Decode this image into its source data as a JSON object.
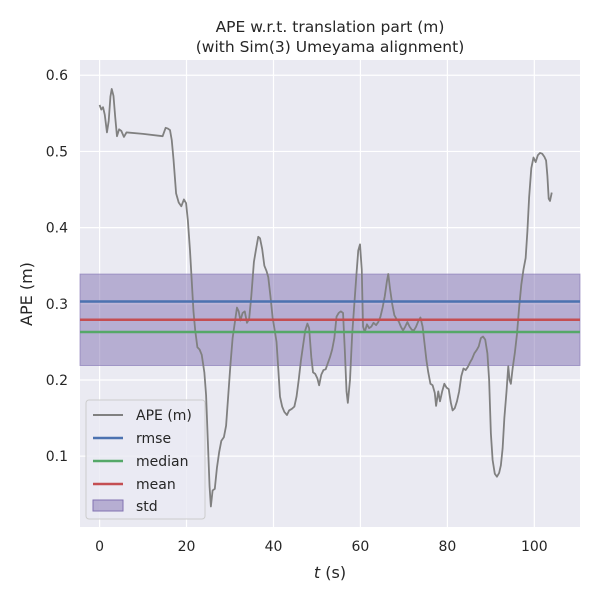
{
  "chart_data": {
    "type": "line",
    "title": "APE w.r.t. translation part (m)",
    "subtitle": "(with Sim(3) Umeyama alignment)",
    "xlabel_italic": "t",
    "xlabel_rest": " (s)",
    "ylabel": "APE (m)",
    "xlim": [
      -4.5,
      110.5
    ],
    "ylim": [
      0.007,
      0.62
    ],
    "xticks": [
      0,
      20,
      40,
      60,
      80,
      100
    ],
    "yticks": [
      0.1,
      0.2,
      0.3,
      0.4,
      0.5,
      0.6
    ],
    "grid": true,
    "legend_position": "lower-left",
    "colors": {
      "background": "#eaeaf2",
      "grid": "#ffffff",
      "ape": "#808080",
      "rmse": "#4c72b0",
      "median": "#55a868",
      "mean": "#c44e52",
      "std": "#8172b2"
    },
    "stats": {
      "rmse": 0.303,
      "median": 0.263,
      "mean": 0.279,
      "std_low": 0.219,
      "std_high": 0.339
    },
    "legend": [
      "APE (m)",
      "rmse",
      "median",
      "mean",
      "std"
    ],
    "series": [
      {
        "name": "APE (m)",
        "points": [
          [
            0,
            0.561
          ],
          [
            0.4,
            0.555
          ],
          [
            0.8,
            0.558
          ],
          [
            1.2,
            0.548
          ],
          [
            1.7,
            0.525
          ],
          [
            2.1,
            0.54
          ],
          [
            2.5,
            0.572
          ],
          [
            2.8,
            0.582
          ],
          [
            3.2,
            0.573
          ],
          [
            3.6,
            0.545
          ],
          [
            4.0,
            0.52
          ],
          [
            4.5,
            0.529
          ],
          [
            5.0,
            0.527
          ],
          [
            5.6,
            0.519
          ],
          [
            6.2,
            0.525
          ],
          [
            10,
            0.523
          ],
          [
            14.5,
            0.52
          ],
          [
            15.2,
            0.531
          ],
          [
            15.7,
            0.53
          ],
          [
            16.2,
            0.528
          ],
          [
            16.6,
            0.515
          ],
          [
            17.0,
            0.49
          ],
          [
            17.6,
            0.445
          ],
          [
            18.2,
            0.433
          ],
          [
            18.8,
            0.428
          ],
          [
            19.4,
            0.437
          ],
          [
            19.9,
            0.432
          ],
          [
            20.3,
            0.41
          ],
          [
            20.8,
            0.37
          ],
          [
            21.2,
            0.33
          ],
          [
            21.6,
            0.29
          ],
          [
            22.0,
            0.265
          ],
          [
            22.5,
            0.243
          ],
          [
            23.0,
            0.24
          ],
          [
            23.5,
            0.233
          ],
          [
            24.1,
            0.21
          ],
          [
            24.5,
            0.18
          ],
          [
            24.9,
            0.12
          ],
          [
            25.3,
            0.06
          ],
          [
            25.6,
            0.034
          ],
          [
            26.0,
            0.055
          ],
          [
            26.5,
            0.057
          ],
          [
            27.0,
            0.085
          ],
          [
            27.5,
            0.105
          ],
          [
            28.0,
            0.12
          ],
          [
            28.6,
            0.125
          ],
          [
            29.1,
            0.14
          ],
          [
            29.6,
            0.18
          ],
          [
            30.1,
            0.22
          ],
          [
            30.6,
            0.255
          ],
          [
            31.1,
            0.275
          ],
          [
            31.6,
            0.295
          ],
          [
            32.0,
            0.29
          ],
          [
            32.4,
            0.278
          ],
          [
            32.9,
            0.288
          ],
          [
            33.4,
            0.29
          ],
          [
            33.9,
            0.275
          ],
          [
            34.4,
            0.28
          ],
          [
            34.9,
            0.31
          ],
          [
            35.5,
            0.355
          ],
          [
            36.0,
            0.372
          ],
          [
            36.5,
            0.388
          ],
          [
            36.9,
            0.386
          ],
          [
            37.4,
            0.372
          ],
          [
            37.9,
            0.35
          ],
          [
            38.4,
            0.343
          ],
          [
            38.8,
            0.335
          ],
          [
            39.3,
            0.31
          ],
          [
            39.8,
            0.282
          ],
          [
            40.2,
            0.268
          ],
          [
            40.7,
            0.25
          ],
          [
            41.1,
            0.215
          ],
          [
            41.5,
            0.178
          ],
          [
            42.0,
            0.165
          ],
          [
            42.5,
            0.158
          ],
          [
            43.1,
            0.154
          ],
          [
            43.6,
            0.16
          ],
          [
            44.2,
            0.162
          ],
          [
            44.8,
            0.165
          ],
          [
            45.3,
            0.178
          ],
          [
            45.8,
            0.2
          ],
          [
            46.3,
            0.225
          ],
          [
            46.8,
            0.245
          ],
          [
            47.3,
            0.265
          ],
          [
            47.8,
            0.274
          ],
          [
            48.2,
            0.268
          ],
          [
            48.7,
            0.23
          ],
          [
            49.1,
            0.21
          ],
          [
            49.6,
            0.208
          ],
          [
            50.1,
            0.202
          ],
          [
            50.5,
            0.193
          ],
          [
            51.0,
            0.207
          ],
          [
            51.5,
            0.213
          ],
          [
            52.0,
            0.214
          ],
          [
            52.5,
            0.222
          ],
          [
            53.0,
            0.23
          ],
          [
            53.5,
            0.24
          ],
          [
            54.0,
            0.255
          ],
          [
            54.5,
            0.283
          ],
          [
            55.0,
            0.288
          ],
          [
            55.5,
            0.29
          ],
          [
            56.0,
            0.288
          ],
          [
            56.4,
            0.24
          ],
          [
            56.8,
            0.185
          ],
          [
            57.1,
            0.17
          ],
          [
            57.6,
            0.2
          ],
          [
            58.1,
            0.26
          ],
          [
            58.6,
            0.3
          ],
          [
            59.1,
            0.34
          ],
          [
            59.5,
            0.37
          ],
          [
            59.9,
            0.378
          ],
          [
            60.3,
            0.345
          ],
          [
            60.6,
            0.27
          ],
          [
            61.0,
            0.263
          ],
          [
            61.5,
            0.273
          ],
          [
            62.0,
            0.268
          ],
          [
            62.5,
            0.27
          ],
          [
            63.0,
            0.275
          ],
          [
            63.6,
            0.272
          ],
          [
            64.1,
            0.276
          ],
          [
            64.6,
            0.283
          ],
          [
            65.1,
            0.295
          ],
          [
            65.6,
            0.31
          ],
          [
            66.1,
            0.33
          ],
          [
            66.4,
            0.339
          ],
          [
            66.8,
            0.32
          ],
          [
            67.3,
            0.3
          ],
          [
            67.8,
            0.285
          ],
          [
            68.3,
            0.28
          ],
          [
            68.8,
            0.277
          ],
          [
            69.3,
            0.27
          ],
          [
            69.8,
            0.265
          ],
          [
            70.3,
            0.27
          ],
          [
            70.8,
            0.276
          ],
          [
            71.3,
            0.27
          ],
          [
            71.8,
            0.266
          ],
          [
            72.3,
            0.265
          ],
          [
            72.8,
            0.27
          ],
          [
            73.3,
            0.277
          ],
          [
            73.8,
            0.282
          ],
          [
            74.3,
            0.27
          ],
          [
            74.8,
            0.245
          ],
          [
            75.2,
            0.225
          ],
          [
            75.6,
            0.21
          ],
          [
            76.1,
            0.195
          ],
          [
            76.6,
            0.193
          ],
          [
            77.1,
            0.183
          ],
          [
            77.4,
            0.166
          ],
          [
            77.9,
            0.185
          ],
          [
            78.3,
            0.172
          ],
          [
            78.8,
            0.185
          ],
          [
            79.3,
            0.195
          ],
          [
            79.8,
            0.19
          ],
          [
            80.3,
            0.188
          ],
          [
            80.8,
            0.17
          ],
          [
            81.2,
            0.16
          ],
          [
            81.7,
            0.163
          ],
          [
            82.2,
            0.172
          ],
          [
            82.7,
            0.185
          ],
          [
            83.2,
            0.205
          ],
          [
            83.7,
            0.215
          ],
          [
            84.2,
            0.213
          ],
          [
            84.7,
            0.217
          ],
          [
            85.2,
            0.223
          ],
          [
            85.7,
            0.228
          ],
          [
            86.2,
            0.235
          ],
          [
            86.7,
            0.239
          ],
          [
            87.2,
            0.244
          ],
          [
            87.7,
            0.255
          ],
          [
            88.2,
            0.257
          ],
          [
            88.7,
            0.253
          ],
          [
            89.2,
            0.235
          ],
          [
            89.6,
            0.2
          ],
          [
            90.0,
            0.13
          ],
          [
            90.4,
            0.095
          ],
          [
            90.9,
            0.077
          ],
          [
            91.4,
            0.073
          ],
          [
            91.9,
            0.078
          ],
          [
            92.3,
            0.088
          ],
          [
            92.7,
            0.11
          ],
          [
            93.1,
            0.15
          ],
          [
            93.6,
            0.185
          ],
          [
            94.0,
            0.218
          ],
          [
            94.3,
            0.2
          ],
          [
            94.6,
            0.195
          ],
          [
            95.0,
            0.215
          ],
          [
            95.5,
            0.235
          ],
          [
            96.0,
            0.26
          ],
          [
            96.5,
            0.295
          ],
          [
            97.0,
            0.325
          ],
          [
            97.5,
            0.345
          ],
          [
            98.0,
            0.36
          ],
          [
            98.4,
            0.395
          ],
          [
            98.8,
            0.44
          ],
          [
            99.3,
            0.478
          ],
          [
            99.8,
            0.492
          ],
          [
            100.3,
            0.486
          ],
          [
            100.8,
            0.495
          ],
          [
            101.3,
            0.498
          ],
          [
            101.8,
            0.497
          ],
          [
            102.3,
            0.493
          ],
          [
            102.7,
            0.488
          ],
          [
            103.0,
            0.468
          ],
          [
            103.3,
            0.438
          ],
          [
            103.6,
            0.435
          ],
          [
            103.9,
            0.443
          ],
          [
            104.0,
            0.446
          ]
        ]
      }
    ]
  }
}
